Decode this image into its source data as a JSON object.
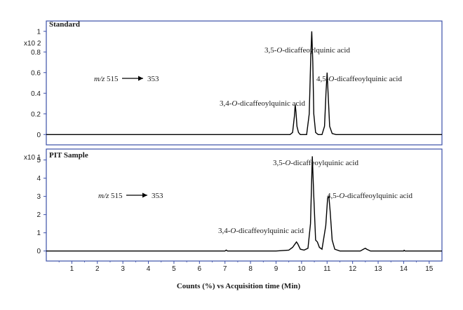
{
  "chart_data": [
    {
      "type": "line",
      "title": "Standard",
      "scale_label": "x10 2",
      "transition": {
        "prefix": "m/z",
        "from": "515",
        "to": "353"
      },
      "x": [
        0,
        9.55,
        9.65,
        9.72,
        9.75,
        9.78,
        9.82,
        9.88,
        9.95,
        10.05,
        10.2,
        10.3,
        10.36,
        10.4,
        10.44,
        10.48,
        10.55,
        10.65,
        10.8,
        10.9,
        10.96,
        11.0,
        11.04,
        11.1,
        11.2,
        11.35,
        15.5
      ],
      "values": [
        0,
        0,
        0.02,
        0.18,
        0.29,
        0.22,
        0.08,
        0.02,
        0,
        0,
        0,
        0.2,
        0.75,
        1.0,
        0.7,
        0.2,
        0.02,
        0,
        0,
        0.08,
        0.42,
        0.6,
        0.4,
        0.08,
        0.01,
        0,
        0
      ],
      "ylim": [
        -0.1,
        1.1
      ],
      "yticks": [
        "0",
        "0.2",
        "0.4",
        "0.6",
        "0.8",
        "1"
      ],
      "annotations": [
        {
          "prefix": "3,4-",
          "italic": "O",
          "suffix": "-dicaffeoylquinic acid"
        },
        {
          "prefix": "3,5-",
          "italic": "O",
          "suffix": "-dicaffeoylquinic acid"
        },
        {
          "prefix": "4,5-",
          "italic": "O",
          "suffix": "-dicaffeoylquinic acid"
        }
      ]
    },
    {
      "type": "line",
      "title": "PIT Sample",
      "scale_label": "x10 1",
      "transition": {
        "prefix": "m/z",
        "from": "515",
        "to": "353"
      },
      "x": [
        0,
        7.0,
        7.05,
        7.1,
        9.0,
        9.5,
        9.65,
        9.75,
        9.8,
        9.85,
        9.95,
        10.1,
        10.25,
        10.35,
        10.42,
        10.48,
        10.55,
        10.62,
        10.7,
        10.8,
        10.95,
        11.02,
        11.07,
        11.12,
        11.2,
        11.3,
        11.5,
        12.3,
        12.45,
        12.5,
        12.55,
        12.7,
        13.5,
        14.0,
        14.02,
        14.05,
        15.5
      ],
      "values": [
        0,
        0,
        0.05,
        0,
        0,
        0.05,
        0.2,
        0.4,
        0.5,
        0.4,
        0.1,
        0.05,
        0.15,
        1.5,
        5.2,
        3.0,
        0.6,
        0.5,
        0.2,
        0.1,
        1.4,
        2.9,
        3.0,
        2.2,
        0.6,
        0.1,
        0,
        0,
        0.12,
        0.15,
        0.1,
        0,
        0,
        0,
        0.04,
        0,
        0
      ],
      "ylim": [
        -0.55,
        5.6
      ],
      "yticks": [
        "0",
        "1",
        "2",
        "3",
        "4",
        "5"
      ],
      "annotations": [
        {
          "prefix": "3,4-",
          "italic": "O",
          "suffix": "-dicaffeoylquinic acid"
        },
        {
          "prefix": "3,5-",
          "italic": "O",
          "suffix": "-dicaffeoylquinic acid"
        },
        {
          "prefix": "4,5-",
          "italic": "O",
          "suffix": "-dicaffeoylquinic acid"
        }
      ]
    }
  ],
  "xaxis": {
    "label": "Counts (%) vs Acquisition time (Min)",
    "ticks": [
      "1",
      "2",
      "3",
      "4",
      "5",
      "6",
      "7",
      "8",
      "9",
      "10",
      "11",
      "12",
      "13",
      "14",
      "15"
    ],
    "xlim": [
      0,
      15.5
    ]
  },
  "colors": {
    "frame": "#3b4fa8",
    "trace": "#000000",
    "text": "#1a1a1a"
  }
}
